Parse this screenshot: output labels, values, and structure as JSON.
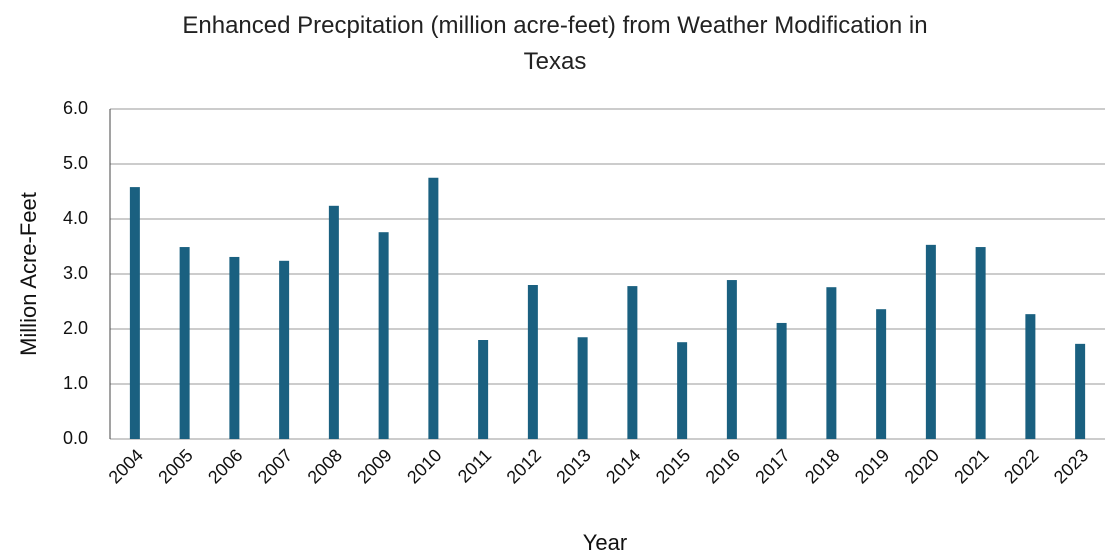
{
  "chart_data": {
    "type": "bar",
    "title": "Enhanced Precpitation (million acre-feet) from Weather Modification in Texas",
    "x_label": "Year",
    "y_label": "Million Acre-Feet",
    "categories": [
      "2004",
      "2005",
      "2006",
      "2007",
      "2008",
      "2009",
      "2010",
      "2011",
      "2012",
      "2013",
      "2014",
      "2015",
      "2016",
      "2017",
      "2018",
      "2019",
      "2020",
      "2021",
      "2022",
      "2023"
    ],
    "values": [
      4.58,
      3.49,
      3.31,
      3.24,
      4.24,
      3.76,
      4.75,
      1.8,
      2.8,
      1.85,
      2.78,
      1.76,
      2.89,
      2.11,
      2.76,
      2.36,
      3.53,
      3.49,
      2.27,
      1.73
    ],
    "color": "#1a6080",
    "ylim": [
      0,
      6
    ],
    "yticks": [
      {
        "value": 0,
        "label": "0.0"
      },
      {
        "value": 1,
        "label": "1.0"
      },
      {
        "value": 2,
        "label": "2.0"
      },
      {
        "value": 3,
        "label": "3.0"
      },
      {
        "value": 4,
        "label": "4.0"
      },
      {
        "value": 5,
        "label": "5.0"
      },
      {
        "value": 6,
        "label": "6.0"
      }
    ],
    "grid": true
  }
}
